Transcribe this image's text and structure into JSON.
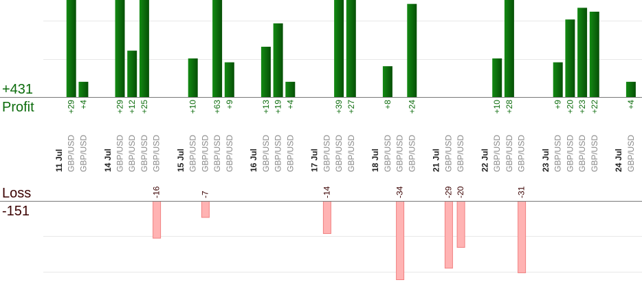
{
  "colors": {
    "profit_bar": "#0b6b0b",
    "profit_text": "#0b6b0b",
    "loss_bar": "#ffb3b3",
    "loss_bar_edge": "#f08080",
    "loss_text": "#3a0000",
    "trade_text": "#888888",
    "date_text": "#222222",
    "grid": "#e8e8e8",
    "axis": "#777777"
  },
  "summary": {
    "profit_total": "+431",
    "profit_label": "Profit",
    "loss_label": "Loss",
    "loss_total": "-151"
  },
  "chart_data": {
    "type": "bar",
    "rows": [
      {
        "kind": "date",
        "label": "11 Jul"
      },
      {
        "kind": "trade",
        "label": "GBP/USD",
        "value": 29
      },
      {
        "kind": "trade",
        "label": "GBP/USD",
        "value": 4
      },
      {
        "kind": "gap"
      },
      {
        "kind": "date",
        "label": "14 Jul"
      },
      {
        "kind": "trade",
        "label": "GBP/USD",
        "value": 29
      },
      {
        "kind": "trade",
        "label": "GBP/USD",
        "value": 12
      },
      {
        "kind": "trade",
        "label": "GBP/USD",
        "value": 25
      },
      {
        "kind": "trade",
        "label": "GBP/USD",
        "value": -16
      },
      {
        "kind": "gap"
      },
      {
        "kind": "date",
        "label": "15 Jul"
      },
      {
        "kind": "trade",
        "label": "GBP/USD",
        "value": 10
      },
      {
        "kind": "trade",
        "label": "GBP/USD",
        "value": -7
      },
      {
        "kind": "trade",
        "label": "GBP/USD",
        "value": 63
      },
      {
        "kind": "trade",
        "label": "GBP/USD",
        "value": 9
      },
      {
        "kind": "gap"
      },
      {
        "kind": "date",
        "label": "16 Jul"
      },
      {
        "kind": "trade",
        "label": "GBP/USD",
        "value": 13
      },
      {
        "kind": "trade",
        "label": "GBP/USD",
        "value": 19
      },
      {
        "kind": "trade",
        "label": "GBP/USD",
        "value": 4
      },
      {
        "kind": "gap"
      },
      {
        "kind": "date",
        "label": "17 Jul"
      },
      {
        "kind": "trade",
        "label": "GBP/USD",
        "value": -14
      },
      {
        "kind": "trade",
        "label": "GBP/USD",
        "value": 39
      },
      {
        "kind": "trade",
        "label": "GBP/USD",
        "value": 27
      },
      {
        "kind": "gap"
      },
      {
        "kind": "date",
        "label": "18 Jul"
      },
      {
        "kind": "trade",
        "label": "GBP/USD",
        "value": 8
      },
      {
        "kind": "trade",
        "label": "GBP/USD",
        "value": -34
      },
      {
        "kind": "trade",
        "label": "GBP/USD",
        "value": 24
      },
      {
        "kind": "gap"
      },
      {
        "kind": "date",
        "label": "21 Jul"
      },
      {
        "kind": "trade",
        "label": "GBP/USD",
        "value": -29
      },
      {
        "kind": "trade",
        "label": "GBP/USD",
        "value": -20
      },
      {
        "kind": "gap"
      },
      {
        "kind": "date",
        "label": "22 Jul"
      },
      {
        "kind": "trade",
        "label": "GBP/USD",
        "value": 10
      },
      {
        "kind": "trade",
        "label": "GBP/USD",
        "value": 28
      },
      {
        "kind": "trade",
        "label": "GBP/USD",
        "value": -31
      },
      {
        "kind": "gap"
      },
      {
        "kind": "date",
        "label": "23 Jul"
      },
      {
        "kind": "trade",
        "label": "GBP/USD",
        "value": 9
      },
      {
        "kind": "trade",
        "label": "GBP/USD",
        "value": 20
      },
      {
        "kind": "trade",
        "label": "GBP/USD",
        "value": 23
      },
      {
        "kind": "trade",
        "label": "GBP/USD",
        "value": 22
      },
      {
        "kind": "gap"
      },
      {
        "kind": "date",
        "label": "24 Jul"
      },
      {
        "kind": "trade",
        "label": "GBP/USD",
        "value": 4
      }
    ],
    "profit_axis_max": 25,
    "loss_axis_max": 34,
    "grid": true
  }
}
